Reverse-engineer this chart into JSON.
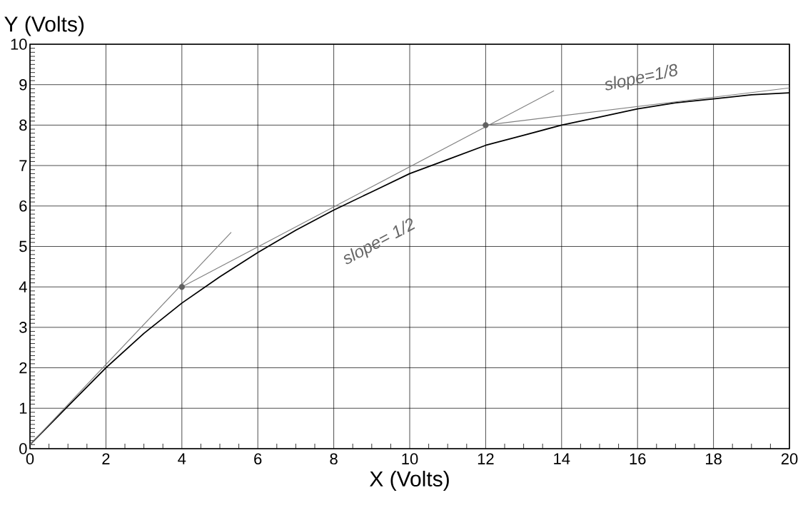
{
  "chart_data": {
    "type": "line",
    "xlabel": "X (Volts)",
    "ylabel": "Y (Volts)",
    "xlim": [
      0,
      20
    ],
    "ylim": [
      0,
      10
    ],
    "xticks": [
      0,
      2,
      4,
      6,
      8,
      10,
      12,
      14,
      16,
      18,
      20
    ],
    "yticks": [
      0,
      1,
      2,
      3,
      4,
      5,
      6,
      7,
      8,
      9,
      10
    ],
    "grid": true,
    "marker": "none",
    "line_style": "solid",
    "series": [
      {
        "color": "#000000",
        "x": [
          0,
          1,
          2,
          3,
          4,
          5,
          6,
          7,
          8,
          9,
          10,
          11,
          12,
          13,
          14,
          15,
          16,
          17,
          18,
          19,
          20
        ],
        "values": [
          0.1,
          1.05,
          2.0,
          2.85,
          3.6,
          4.25,
          4.85,
          5.4,
          5.9,
          6.35,
          6.8,
          7.15,
          7.5,
          7.75,
          8.0,
          8.2,
          8.4,
          8.55,
          8.65,
          8.75,
          8.8
        ]
      },
      {
        "color": "#808080",
        "x": [
          0,
          5.3
        ],
        "values": [
          0.1,
          5.35
        ]
      },
      {
        "color": "#808080",
        "x": [
          4,
          13.8
        ],
        "values": [
          4,
          8.85
        ]
      },
      {
        "color": "#808080",
        "x": [
          12,
          20
        ],
        "values": [
          8,
          8.92
        ]
      },
      {
        "type": "scatter",
        "color": "#606060",
        "marker": "circle",
        "x": [
          4,
          12
        ],
        "values": [
          4,
          8
        ]
      }
    ],
    "annotations": [
      "slope= 1/2",
      "slope=1/8"
    ]
  }
}
